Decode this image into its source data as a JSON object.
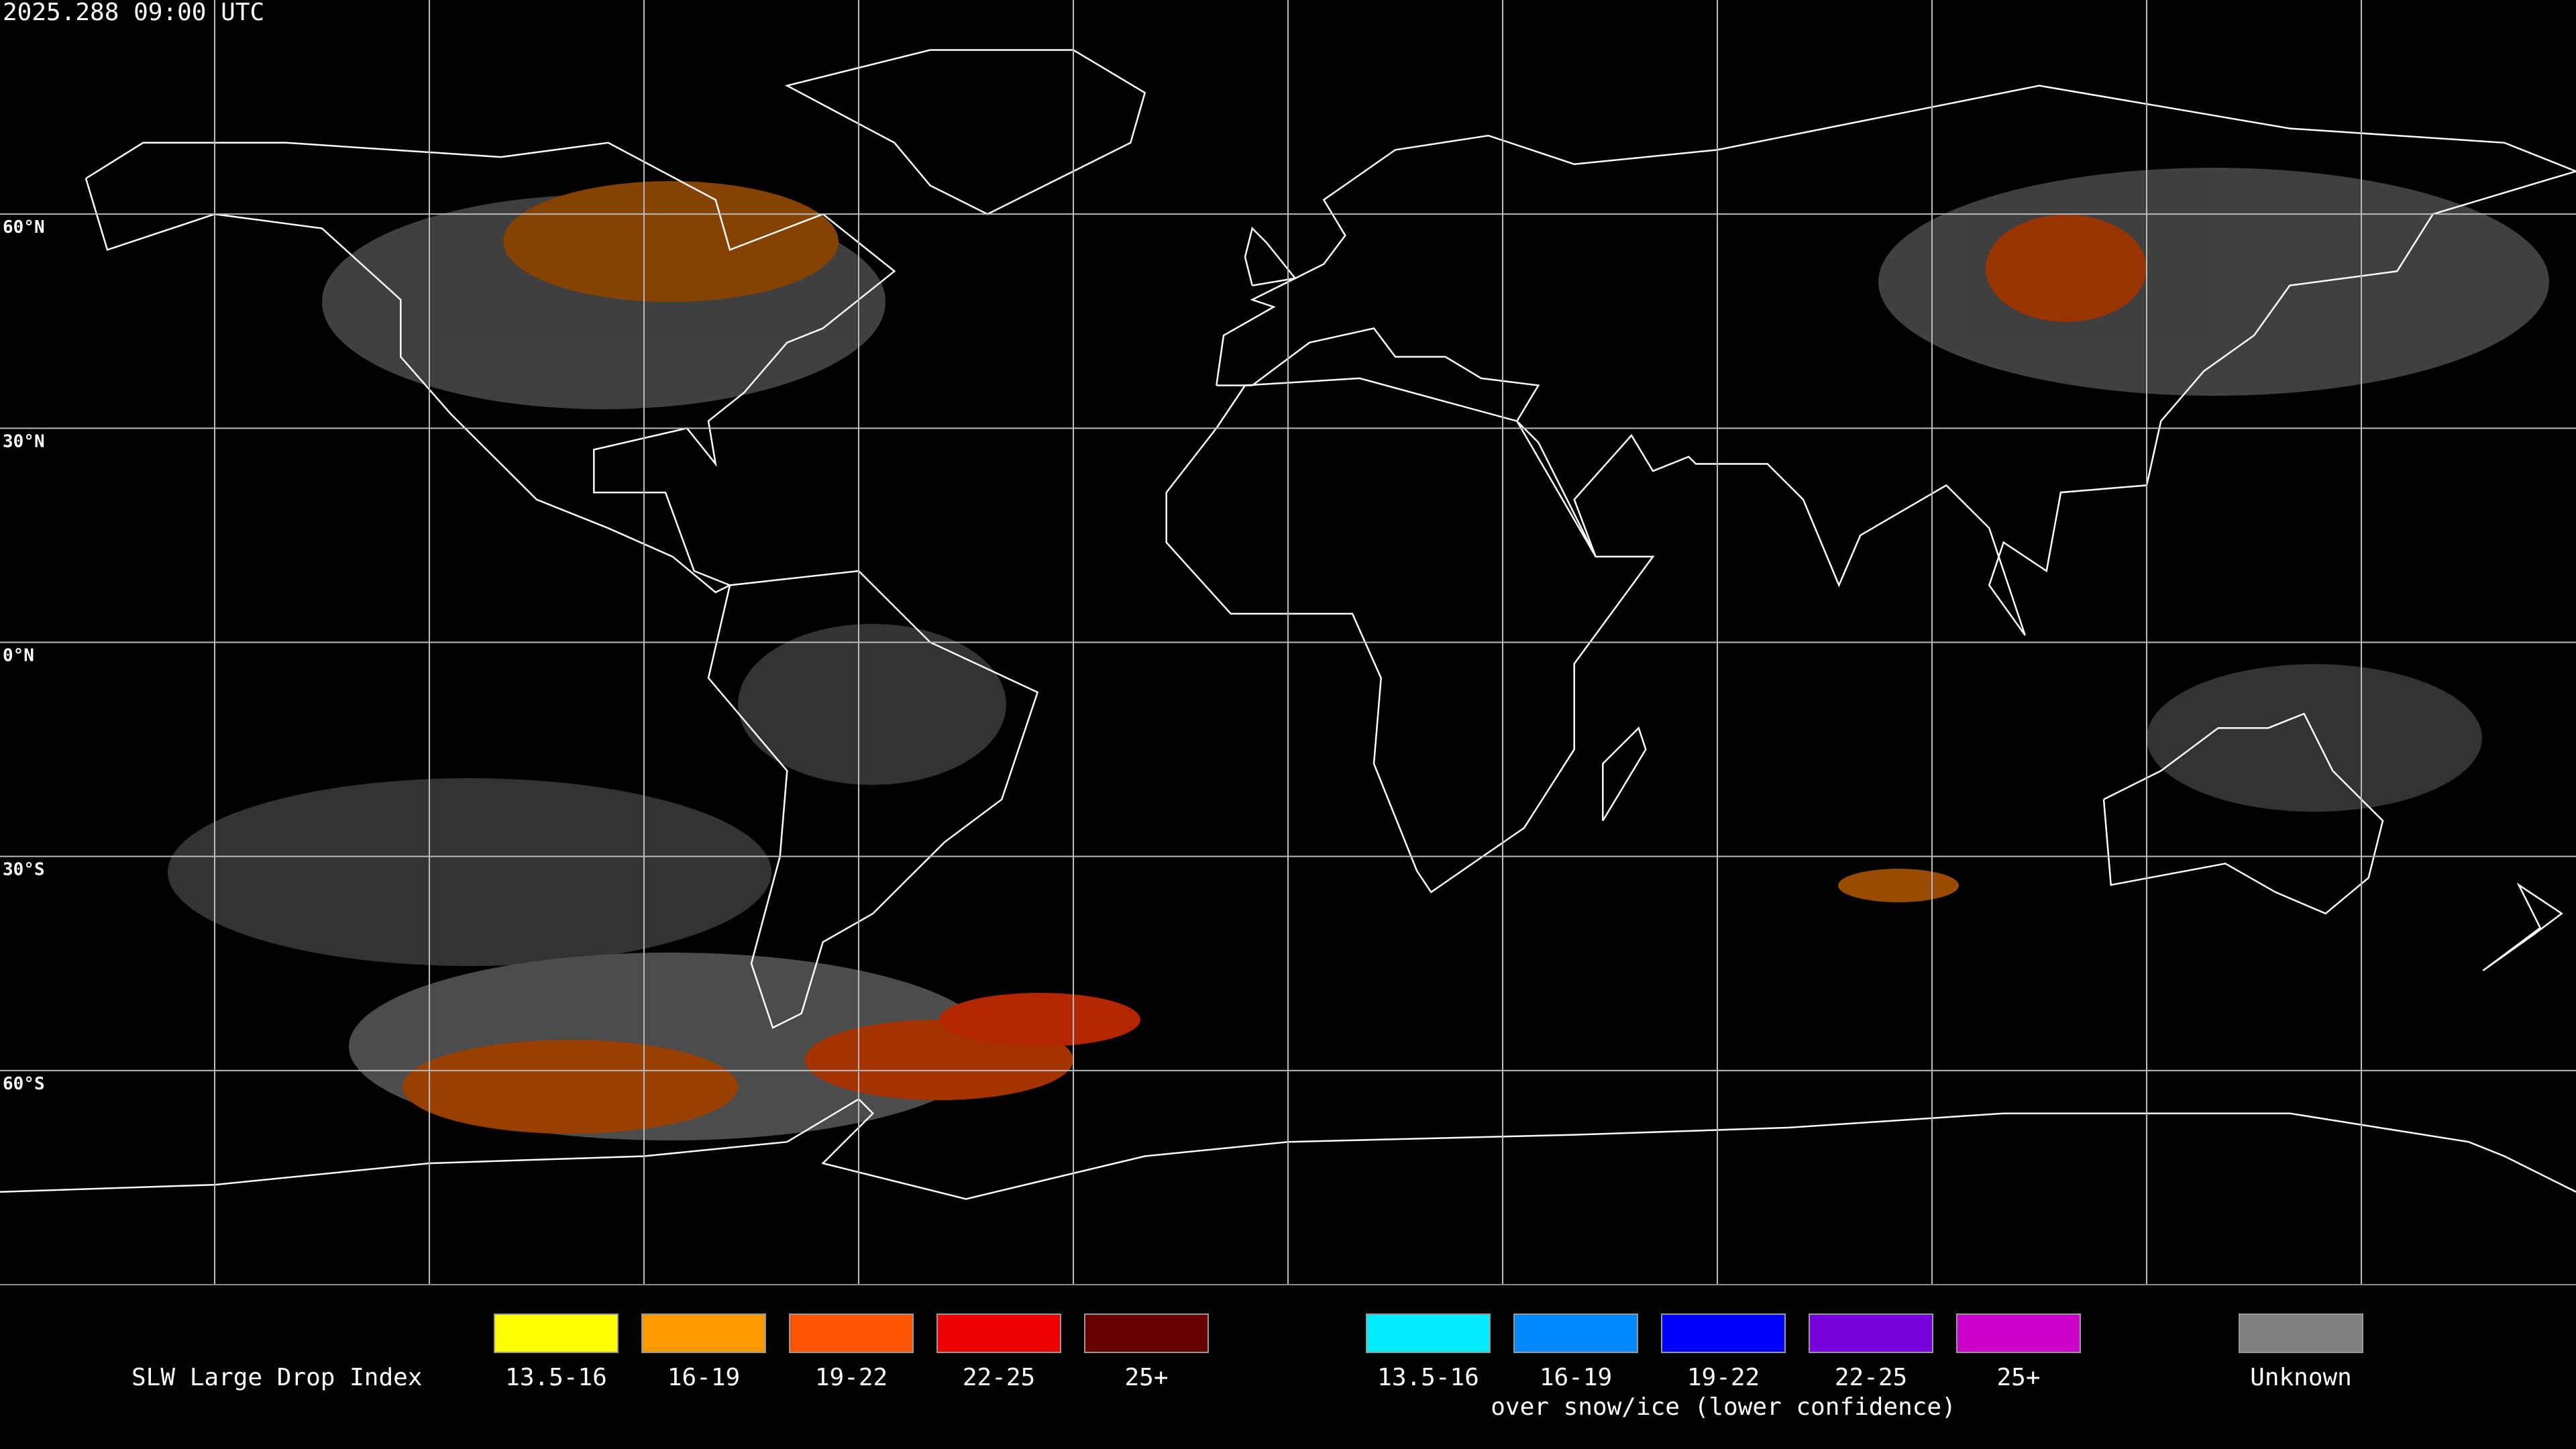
{
  "header": {
    "timestamp": "2025.288 09:00 UTC"
  },
  "map": {
    "latitude_labels": [
      "60°N",
      "30°N",
      "0°N",
      "30°S",
      "60°S"
    ]
  },
  "legend": {
    "title": "SLW Large Drop Index",
    "groups": [
      {
        "items": [
          {
            "label": "13.5-16",
            "color": "#ffff00"
          },
          {
            "label": "16-19",
            "color": "#ff9900"
          },
          {
            "label": "19-22",
            "color": "#ff5500"
          },
          {
            "label": "22-25",
            "color": "#ee0000"
          },
          {
            "label": "25+",
            "color": "#660000"
          }
        ]
      },
      {
        "items": [
          {
            "label": "13.5-16",
            "color": "#00eeff"
          },
          {
            "label": "16-19",
            "color": "#0088ff"
          },
          {
            "label": "19-22",
            "color": "#0000ff"
          },
          {
            "label": "22-25",
            "color": "#7700dd"
          },
          {
            "label": "25+",
            "color": "#cc00cc"
          }
        ],
        "caption": "over snow/ice (lower confidence)"
      },
      {
        "items": [
          {
            "label": "Unknown",
            "color": "#808080"
          }
        ]
      }
    ]
  }
}
